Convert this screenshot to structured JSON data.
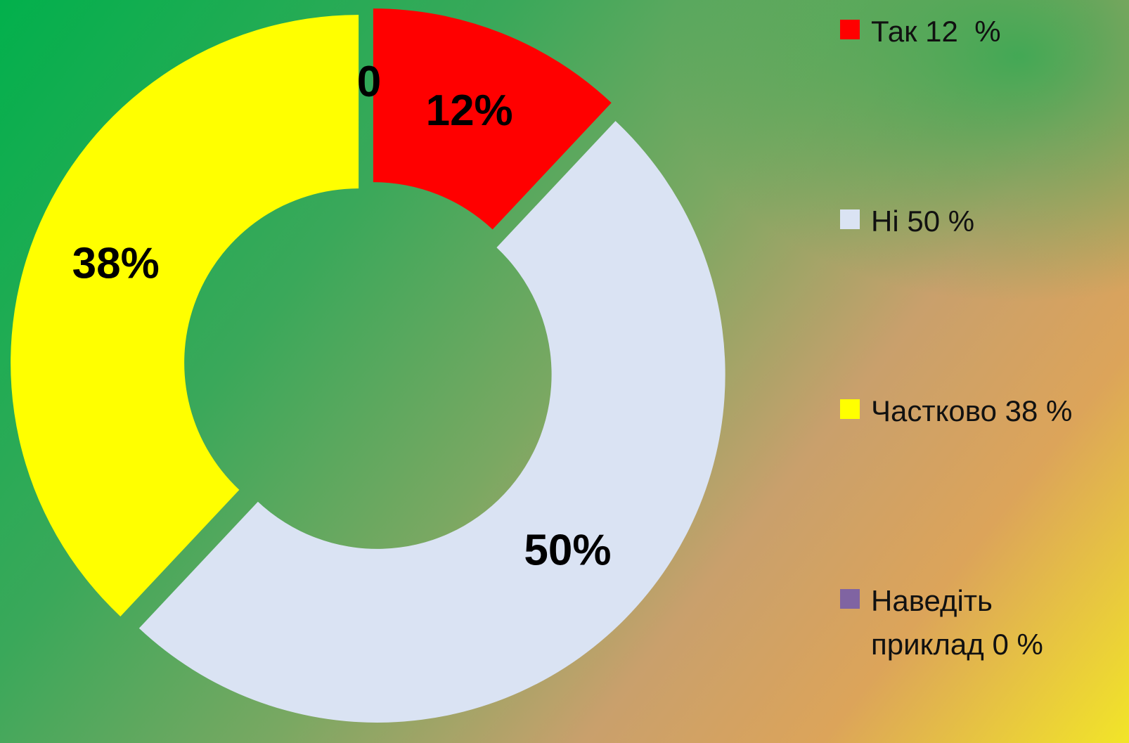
{
  "chart_data": {
    "type": "donut",
    "categories": [
      "Так 12  %",
      "Ні 50 %",
      "Частково 38 %",
      "Наведіть приклад 0 %"
    ],
    "values": [
      12,
      50,
      38,
      0
    ],
    "value_labels": [
      "12%",
      "50%",
      "38%",
      "0"
    ],
    "colors": [
      "#ff0000",
      "#dae3f3",
      "#ffff00",
      "#8064a2"
    ],
    "legend": "right"
  }
}
